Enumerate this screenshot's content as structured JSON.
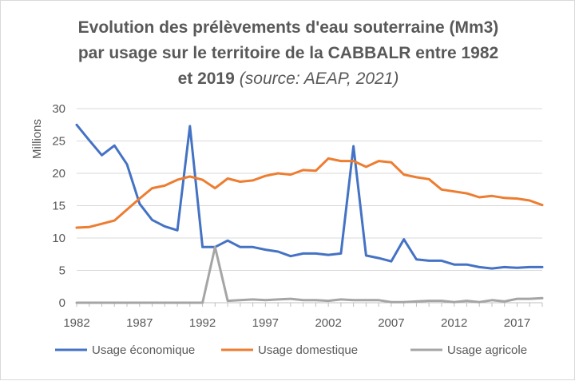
{
  "chart_data": {
    "type": "line",
    "title": {
      "line1": "Evolution des prélèvements d'eau souterraine (Mm3)",
      "line2": "par usage sur le territoire de la CABBALR entre 1982",
      "line3_main": "et 2019",
      "line3_source": "(source: AEAP, 2021)"
    },
    "ylabel": "Millions",
    "xlabel": "",
    "ylim": [
      0,
      30
    ],
    "yticks": [
      0,
      5,
      10,
      15,
      20,
      25,
      30
    ],
    "xlim": [
      1982,
      2019
    ],
    "xticks": [
      1982,
      1987,
      1992,
      1997,
      2002,
      2007,
      2012,
      2017
    ],
    "grid": "horizontal",
    "legend_position": "bottom",
    "x": [
      1982,
      1983,
      1984,
      1985,
      1986,
      1987,
      1988,
      1989,
      1990,
      1991,
      1992,
      1993,
      1994,
      1995,
      1996,
      1997,
      1998,
      1999,
      2000,
      2001,
      2002,
      2003,
      2004,
      2005,
      2006,
      2007,
      2008,
      2009,
      2010,
      2011,
      2012,
      2013,
      2014,
      2015,
      2016,
      2017,
      2018,
      2019
    ],
    "series": [
      {
        "name": "Usage économique",
        "color": "#4472c4",
        "values": [
          27.5,
          25.1,
          22.8,
          24.3,
          21.4,
          15.3,
          12.8,
          11.8,
          11.2,
          27.3,
          8.6,
          8.6,
          9.6,
          8.6,
          8.6,
          8.2,
          7.9,
          7.2,
          7.6,
          7.6,
          7.4,
          7.6,
          24.2,
          7.3,
          6.9,
          6.4,
          9.8,
          6.7,
          6.5,
          6.5,
          5.9,
          5.9,
          5.5,
          5.3,
          5.5,
          5.4,
          5.5,
          5.5
        ]
      },
      {
        "name": "Usage domestique",
        "color": "#ed7d31",
        "values": [
          11.6,
          11.7,
          12.2,
          12.7,
          14.4,
          16.1,
          17.7,
          18.1,
          19.0,
          19.5,
          19.0,
          17.7,
          19.2,
          18.7,
          18.9,
          19.6,
          20.0,
          19.8,
          20.5,
          20.4,
          22.3,
          21.9,
          21.9,
          21.0,
          21.9,
          21.7,
          19.8,
          19.4,
          19.1,
          17.5,
          17.2,
          16.9,
          16.3,
          16.5,
          16.2,
          16.1,
          15.8,
          15.1
        ]
      },
      {
        "name": "Usage agricole",
        "color": "#a5a5a5",
        "values": [
          0.0,
          0.0,
          0.0,
          0.0,
          0.0,
          0.0,
          0.0,
          0.0,
          0.0,
          0.0,
          0.0,
          8.6,
          0.3,
          0.4,
          0.5,
          0.4,
          0.5,
          0.6,
          0.4,
          0.4,
          0.3,
          0.5,
          0.4,
          0.4,
          0.4,
          0.1,
          0.1,
          0.2,
          0.3,
          0.3,
          0.1,
          0.3,
          0.1,
          0.4,
          0.2,
          0.6,
          0.6,
          0.7
        ]
      }
    ]
  }
}
